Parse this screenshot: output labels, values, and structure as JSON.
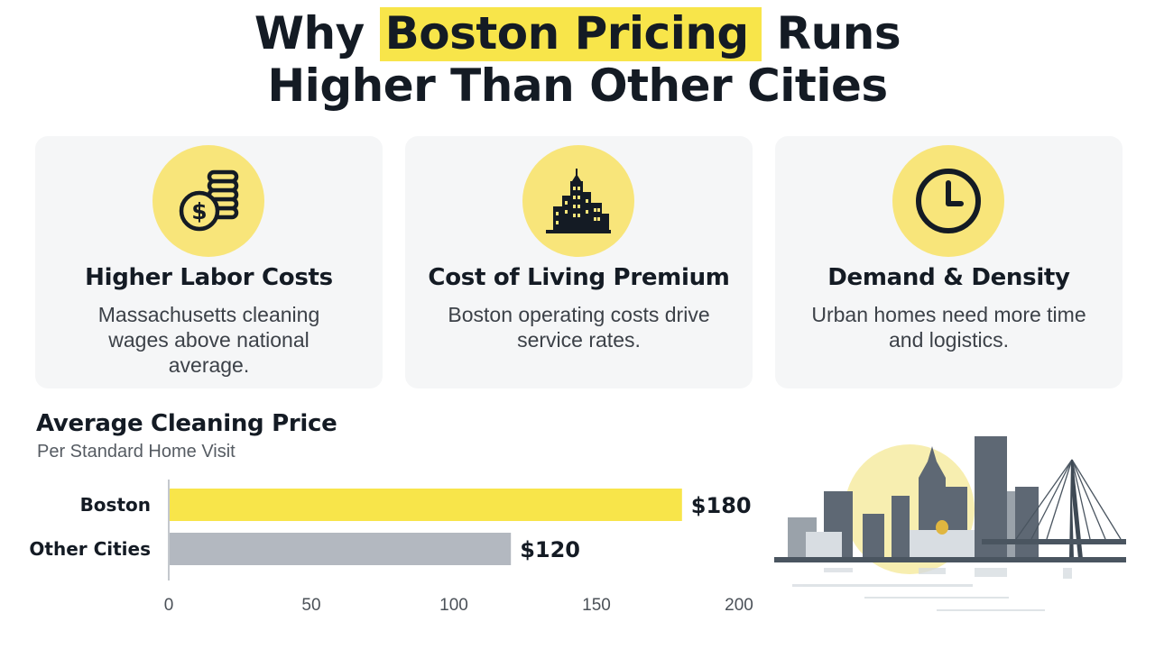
{
  "title": {
    "prefix": "Why",
    "highlight": "Boston Pricing",
    "suffix_line1": "Runs",
    "line2": "Higher Than Other Cities"
  },
  "cards": [
    {
      "icon": "dollar-coins-icon",
      "title": "Higher Labor Costs",
      "description": "Massachusetts cleaning wages above national average."
    },
    {
      "icon": "city-buildings-icon",
      "title": "Cost of Living Premium",
      "description": "Boston operating costs drive service rates."
    },
    {
      "icon": "clock-icon",
      "title": "Demand & Density",
      "description": "Urban homes need more time and logistics."
    }
  ],
  "colors": {
    "accent": "#f8e54a",
    "icon_circle": "#f8e57a",
    "card_bg": "#f5f6f7",
    "boston_bar": "#f8e54a",
    "other_bar": "#b3b8c0",
    "text_dark": "#141b24"
  },
  "chart_data": {
    "type": "bar",
    "orientation": "horizontal",
    "title": "Average Cleaning Price",
    "subtitle": "Per Standard Home Visit",
    "categories": [
      "Boston",
      "Other Cities"
    ],
    "values": [
      180,
      120
    ],
    "value_labels": [
      "$180",
      "$120"
    ],
    "bar_colors": [
      "#f8e54a",
      "#b3b8c0"
    ],
    "xlim": [
      0,
      200
    ],
    "xticks": [
      0,
      50,
      100,
      150,
      200
    ],
    "grid": false,
    "legend": "none"
  },
  "illustration": {
    "name": "boston-skyline-illustration"
  }
}
